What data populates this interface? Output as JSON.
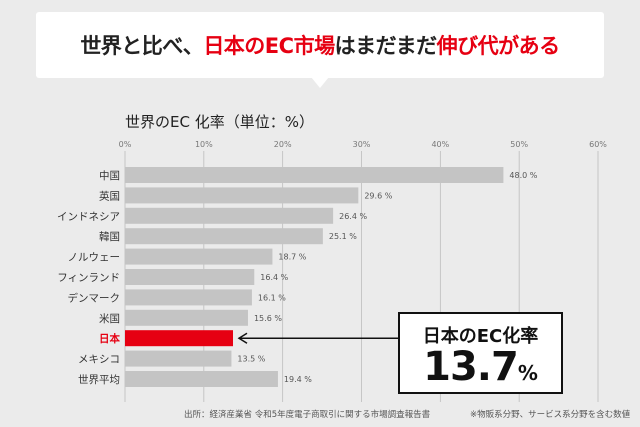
{
  "headline": {
    "part1": "世界と比べ、",
    "part2": "日本のEC市場",
    "part3": "はまだまだ",
    "part4": "伸び代がある"
  },
  "chart_data": {
    "type": "bar",
    "orientation": "horizontal",
    "title": "世界のEC 化率（単位：%）",
    "categories": [
      "中国",
      "英国",
      "インドネシア",
      "韓国",
      "ノルウェー",
      "フィンランド",
      "デンマーク",
      "米国",
      "日本",
      "メキシコ",
      "世界平均"
    ],
    "values": [
      48.0,
      29.6,
      26.4,
      25.1,
      18.7,
      16.4,
      16.1,
      15.6,
      13.7,
      13.5,
      19.4
    ],
    "value_labels": [
      "48.0 %",
      "29.6 %",
      "26.4 %",
      "25.1 %",
      "18.7 %",
      "16.4 %",
      "16.1 %",
      "15.6 %",
      "",
      "13.5 %",
      "19.4 %"
    ],
    "highlight": "日本",
    "xlim": [
      0,
      60
    ],
    "xticks": [
      0,
      10,
      20,
      30,
      40,
      50,
      60
    ],
    "xtick_labels": [
      "0%",
      "10%",
      "20%",
      "30%",
      "40%",
      "50%",
      "60%"
    ],
    "grid": true,
    "colors": {
      "bar": "#c4c4c4",
      "highlight": "#e60012",
      "grid": "#bdbdbd"
    }
  },
  "callout": {
    "label": "日本のEC化率",
    "value": "13.7",
    "unit": "%"
  },
  "footer": {
    "source": "出所：経済産業省 令和5年度電子商取引に関する市場調査報告書",
    "note": "※物販系分野、サービス系分野を含む数値"
  }
}
